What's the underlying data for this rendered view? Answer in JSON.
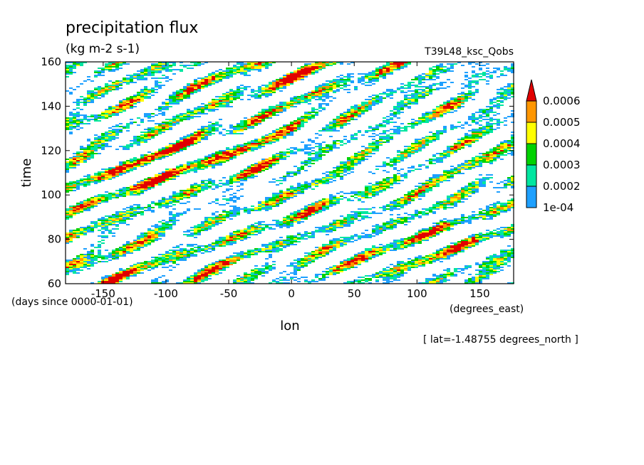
{
  "chart_data": {
    "type": "heatmap",
    "title": "precipitation flux",
    "units": "(kg m-2 s-1)",
    "run_label": "T39L48_ksc_Qobs",
    "xlabel": "lon",
    "ylabel": "time",
    "x_units": "(degrees_east)",
    "y_units": "(days since 0000-01-01)",
    "slice_note": "[ lat=-1.48755 degrees_north ]",
    "xlim": [
      -180,
      177
    ],
    "ylim": [
      60,
      160
    ],
    "x_ticks": [
      -150,
      -100,
      -50,
      0,
      50,
      100,
      150
    ],
    "y_ticks": [
      60,
      80,
      100,
      120,
      140,
      160
    ],
    "colorbar": {
      "levels": [
        0.0001,
        0.0002,
        0.0003,
        0.0004,
        0.0005,
        0.0006
      ],
      "labels": [
        "1e-04",
        "0.0002",
        "0.0003",
        "0.0004",
        "0.0005",
        "0.0006"
      ],
      "colors": [
        "#1ea0ff",
        "#00e6a0",
        "#00d200",
        "#ffff00",
        "#ff9600",
        "#e10000"
      ],
      "extend": "max"
    },
    "propagation_features": "eastward-moving precipitation bands slanting downward to the right, periods roughly 60-160 days"
  }
}
